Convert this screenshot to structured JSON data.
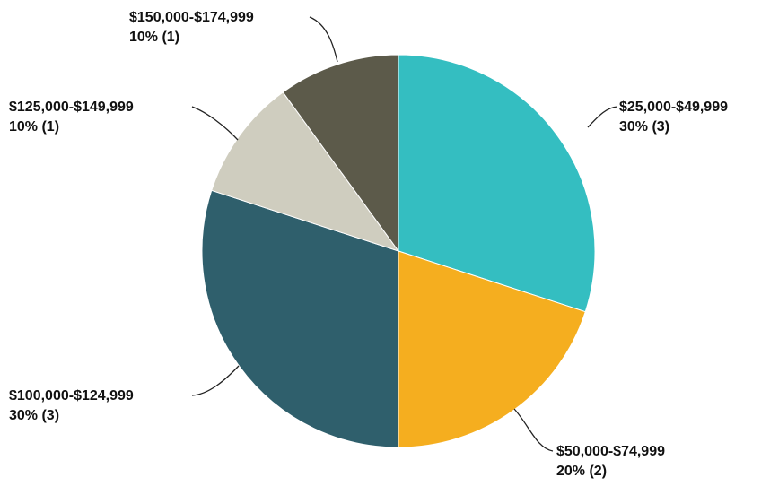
{
  "chart_data": {
    "type": "pie",
    "title": "",
    "legend": "none",
    "slices": [
      {
        "category": "$25,000-$49,999",
        "value": 3,
        "percent_label": "30% (3)",
        "color": "#34bec1"
      },
      {
        "category": "$50,000-$74,999",
        "value": 2,
        "percent_label": "20% (2)",
        "color": "#f5ae1f"
      },
      {
        "category": "$100,000-$124,999",
        "value": 3,
        "percent_label": "30% (3)",
        "color": "#2f5f6c"
      },
      {
        "category": "$125,000-$149,999",
        "value": 1,
        "percent_label": "10% (1)",
        "color": "#cfcdbf"
      },
      {
        "category": "$150,000-$174,999",
        "value": 1,
        "percent_label": "10% (1)",
        "color": "#5c5a4a"
      }
    ]
  }
}
